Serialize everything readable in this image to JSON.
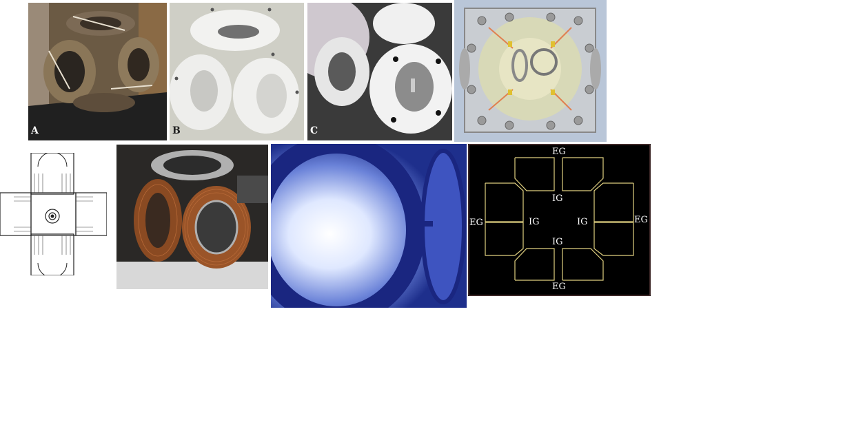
{
  "panels": {
    "a": {
      "label": "A"
    },
    "b": {
      "label": "B"
    },
    "c": {
      "label": "C"
    }
  },
  "grid_diagram": {
    "outer_labels": [
      "EG",
      "EG",
      "EG",
      "EG"
    ],
    "inner_labels": [
      "IG",
      "IG",
      "IG",
      "IG"
    ]
  },
  "colors": {
    "copper": "#8a4a22",
    "steel": "#9a9a98",
    "teflon": "#eeeeee",
    "plasma_blue": "#2a3fb0",
    "grid_line": "#e0d080"
  }
}
